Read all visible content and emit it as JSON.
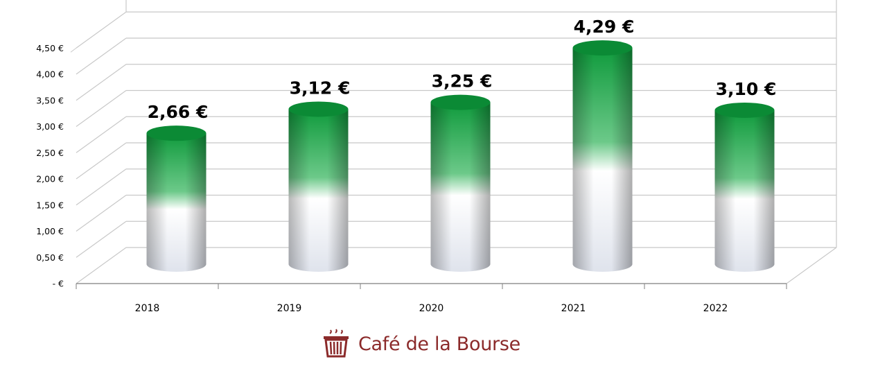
{
  "chart_data": {
    "type": "bar",
    "style": "3d-cylinder",
    "categories": [
      "2018",
      "2019",
      "2020",
      "2021",
      "2022"
    ],
    "values": [
      2.66,
      3.12,
      3.25,
      4.29,
      3.1
    ],
    "data_labels": [
      "2,66 €",
      "3,12 €",
      "3,25 €",
      "4,29 €",
      "3,10 €"
    ],
    "y_ticks": [
      "-  €",
      "0,50 €",
      "1,00 €",
      "1,50 €",
      "2,00 €",
      "2,50 €",
      "3,00 €",
      "3,50 €",
      "4,00 €",
      "4,50 €"
    ],
    "ylim": [
      0,
      4.5
    ],
    "grid": true,
    "legend": "none",
    "colors": {
      "top": "#0f9a3c",
      "bottom": "#ffffff",
      "grid": "#c8c8c8"
    }
  },
  "brand": {
    "name": "Café de la Bourse",
    "color": "#8b2a2a",
    "icon": "coffee-cup-icon"
  }
}
